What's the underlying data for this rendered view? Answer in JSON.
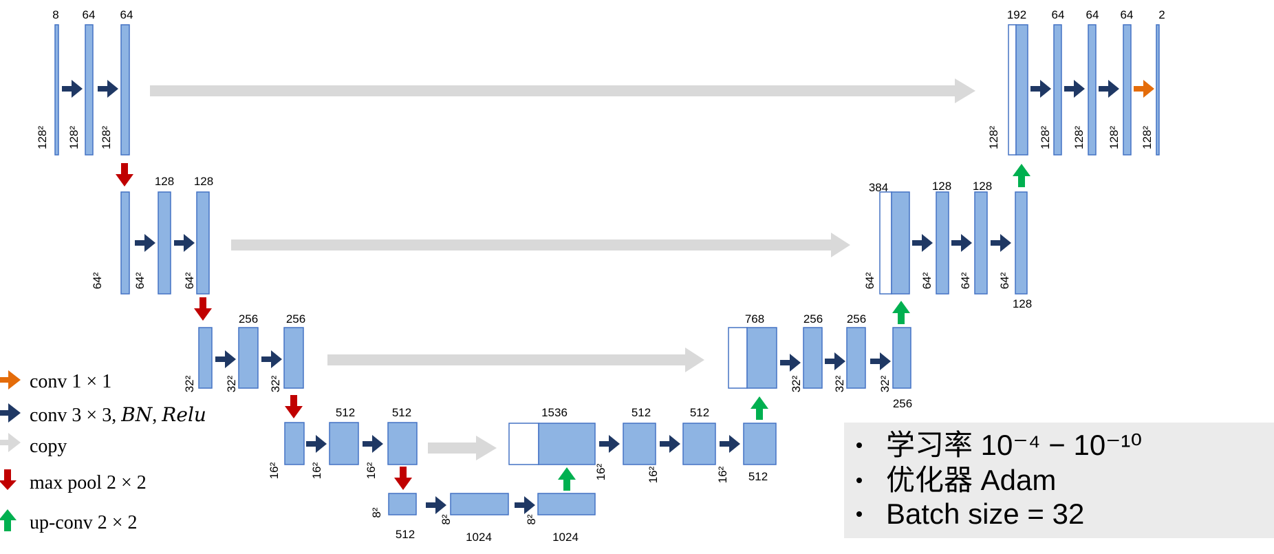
{
  "colors": {
    "block_fill": "#8eb4e3",
    "block_stroke": "#4472c4",
    "conv3x3": "#1f3864",
    "conv1x1": "#e46c0a",
    "copy": "#d9d9d9",
    "maxpool": "#c00000",
    "upconv": "#00b050",
    "info_bg": "#ebebeb"
  },
  "channels": {
    "l1_a": "8",
    "l1_b": "64",
    "l1_c": "64",
    "l2_b": "128",
    "l2_c": "128",
    "l3_b": "256",
    "l3_c": "256",
    "l4_b": "512",
    "l4_c": "512",
    "l5_a": "512",
    "l5_b": "1024",
    "l5_c": "1024",
    "u4_cat": "1536",
    "u4_a": "512",
    "u4_b": "512",
    "u4_out": "512",
    "u3_cat": "768",
    "u3_a": "256",
    "u3_b": "256",
    "u3_out": "256",
    "u2_cat": "384",
    "u2_a": "128",
    "u2_b": "128",
    "u2_out": "128",
    "u1_cat": "192",
    "u1_a": "64",
    "u1_b": "64",
    "u1_c": "64",
    "u1_d": "2"
  },
  "sizes": {
    "s128": "128²",
    "s64": "64²",
    "s32": "32²",
    "s16": "16²",
    "s8": "8²"
  },
  "legend": [
    {
      "icon": "orange-arrow-icon",
      "text": "conv 1 × 1"
    },
    {
      "icon": "navy-arrow-icon",
      "text": "conv 3 × 3,  𝐵𝑁, 𝑅𝑒𝑙𝑢"
    },
    {
      "icon": "gray-arrow-icon",
      "text": "copy"
    },
    {
      "icon": "red-down-arrow-icon",
      "text": "max pool 2 × 2"
    },
    {
      "icon": "green-up-arrow-icon",
      "text": "up-conv 2 × 2"
    }
  ],
  "info": [
    "学习率 10⁻⁴  − 10⁻¹⁰",
    "优化器 Adam",
    "Batch size = 32"
  ]
}
